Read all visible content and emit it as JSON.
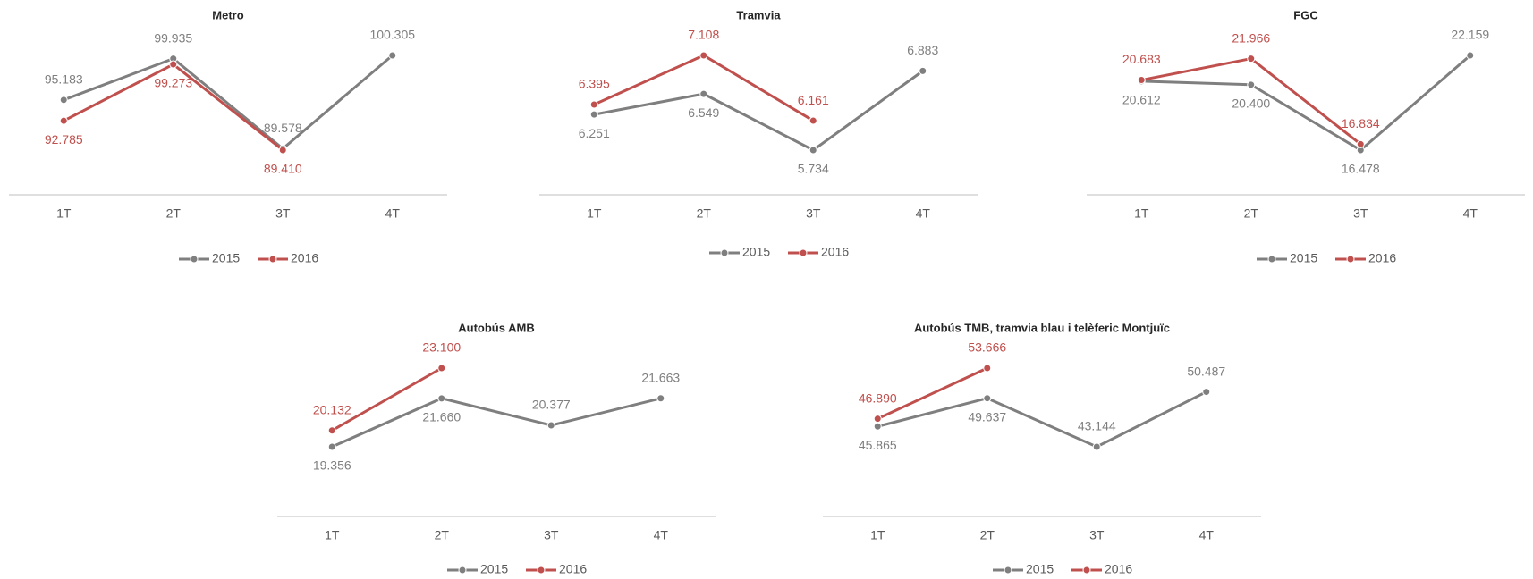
{
  "chart_data": [
    {
      "type": "line",
      "title": "Metro",
      "categories": [
        "1T",
        "2T",
        "3T",
        "4T"
      ],
      "legend": "bottom",
      "series": [
        {
          "name": "2015",
          "color": "#7f7f7f",
          "values": [
            95.183,
            99.935,
            89.578,
            100.305
          ],
          "value_labels": [
            "95.183",
            "99.935",
            "89.578",
            "100.305"
          ]
        },
        {
          "name": "2016",
          "color": "#c0504d",
          "values": [
            92.785,
            99.273,
            89.41,
            null
          ],
          "value_labels": [
            "92.785",
            "99.273",
            "89.410",
            null
          ]
        }
      ]
    },
    {
      "type": "line",
      "title": "Tramvia",
      "categories": [
        "1T",
        "2T",
        "3T",
        "4T"
      ],
      "legend": "bottom",
      "series": [
        {
          "name": "2015",
          "color": "#7f7f7f",
          "values": [
            6.251,
            6.549,
            5.734,
            6.883
          ],
          "value_labels": [
            "6.251",
            "6.549",
            "5.734",
            "6.883"
          ]
        },
        {
          "name": "2016",
          "color": "#c0504d",
          "values": [
            6.395,
            7.108,
            6.161,
            null
          ],
          "value_labels": [
            "6.395",
            "7.108",
            "6.161",
            null
          ]
        }
      ]
    },
    {
      "type": "line",
      "title": "FGC",
      "categories": [
        "1T",
        "2T",
        "3T",
        "4T"
      ],
      "legend": "bottom",
      "series": [
        {
          "name": "2015",
          "color": "#7f7f7f",
          "values": [
            20.612,
            20.4,
            16.478,
            22.159
          ],
          "value_labels": [
            "20.612",
            "20.400",
            "16.478",
            "22.159"
          ]
        },
        {
          "name": "2016",
          "color": "#c0504d",
          "values": [
            20.683,
            21.966,
            16.834,
            null
          ],
          "value_labels": [
            "20.683",
            "21.966",
            "16.834",
            null
          ]
        }
      ]
    },
    {
      "type": "line",
      "title": "Autobús AMB",
      "categories": [
        "1T",
        "2T",
        "3T",
        "4T"
      ],
      "legend": "bottom",
      "series": [
        {
          "name": "2015",
          "color": "#7f7f7f",
          "values": [
            19.356,
            21.66,
            20.377,
            21.663
          ],
          "value_labels": [
            "19.356",
            "21.660",
            "20.377",
            "21.663"
          ]
        },
        {
          "name": "2016",
          "color": "#c0504d",
          "values": [
            20.132,
            23.1,
            null,
            null
          ],
          "value_labels": [
            "20.132",
            "23.100",
            null,
            null
          ]
        }
      ]
    },
    {
      "type": "line",
      "title": "Autobús TMB, tramvia blau i telèferic Montjuïc",
      "categories": [
        "1T",
        "2T",
        "3T",
        "4T"
      ],
      "legend": "bottom",
      "series": [
        {
          "name": "2015",
          "color": "#7f7f7f",
          "values": [
            45.865,
            49.637,
            43.144,
            50.487
          ],
          "value_labels": [
            "45.865",
            "49.637",
            "43.144",
            "50.487"
          ]
        },
        {
          "name": "2016",
          "color": "#c0504d",
          "values": [
            46.89,
            53.666,
            null,
            null
          ],
          "value_labels": [
            "46.890",
            "53.666",
            null,
            null
          ]
        }
      ]
    }
  ]
}
